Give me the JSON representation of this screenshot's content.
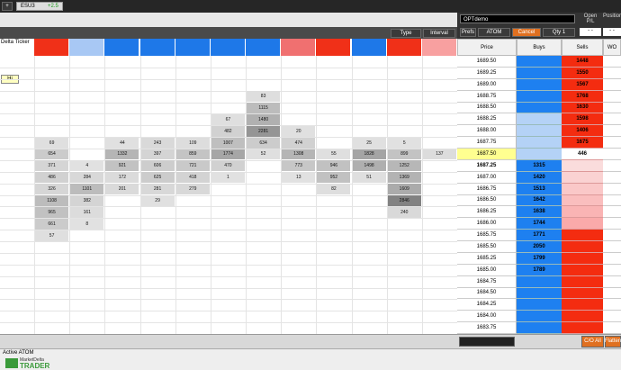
{
  "header": {
    "new_tab": "+",
    "symbol": "ESU3",
    "change": "+2.5",
    "account": "OPTdemo",
    "open_pl": "Open P/L",
    "position": "Position",
    "open_pl_value": "- -",
    "position_value": "- -"
  },
  "toolbar": {
    "type": "Type",
    "interval": "Interval",
    "prefs": "Prefs",
    "atom": "ATOM",
    "cancel": "Cancel",
    "qty": "Qty 1"
  },
  "delta_ticker": "Delta Ticker",
  "marker": "Hi",
  "ladder": {
    "columns": [
      "Price",
      "Buys",
      "Sells",
      "WO"
    ],
    "rows": [
      {
        "price": "1689.50",
        "sells": 1448
      },
      {
        "price": "1689.25",
        "sells": 1550
      },
      {
        "price": "1689.00",
        "sells": 1567
      },
      {
        "price": "1688.75",
        "sells": 1768
      },
      {
        "price": "1688.50",
        "sells": 1630
      },
      {
        "price": "1688.25",
        "sells": 1598
      },
      {
        "price": "1688.00",
        "sells": 1406
      },
      {
        "price": "1687.75",
        "sells": 1675
      },
      {
        "price": "1687.50",
        "sells": 446
      },
      {
        "price": "1687.25",
        "buys": 1315
      },
      {
        "price": "1687.00",
        "buys": 1420
      },
      {
        "price": "1686.75",
        "buys": 1513
      },
      {
        "price": "1686.50",
        "buys": 1642
      },
      {
        "price": "1686.25",
        "buys": 1638
      },
      {
        "price": "1686.00",
        "buys": 1744
      },
      {
        "price": "1685.75",
        "buys": 1771
      },
      {
        "price": "1685.50",
        "buys": 2050
      },
      {
        "price": "1685.25",
        "buys": 1799
      },
      {
        "price": "1685.00",
        "buys": 1789
      },
      {
        "price": "1684.75"
      },
      {
        "price": "1684.50"
      },
      {
        "price": "1684.25"
      },
      {
        "price": "1684.00"
      },
      {
        "price": "1683.75"
      }
    ]
  },
  "footprint": {
    "columns": [
      [
        null,
        null,
        null,
        null,
        null,
        null,
        null,
        69,
        654,
        371,
        486,
        326,
        1108,
        965,
        661,
        57
      ],
      [
        null,
        null,
        null,
        null,
        null,
        null,
        null,
        null,
        null,
        4,
        284,
        1101,
        382,
        161,
        8
      ],
      [
        null,
        null,
        null,
        null,
        null,
        null,
        null,
        44,
        1332,
        921,
        172,
        201
      ],
      [
        null,
        null,
        null,
        null,
        null,
        null,
        null,
        243,
        397,
        606,
        625,
        281,
        29
      ],
      [
        null,
        null,
        null,
        null,
        null,
        null,
        null,
        109,
        859,
        721,
        418,
        279
      ],
      [
        null,
        null,
        null,
        null,
        null,
        67,
        482,
        1007,
        1774,
        470,
        1
      ],
      [
        null,
        null,
        null,
        83,
        1115,
        1480,
        2281,
        634,
        52
      ],
      [
        null,
        null,
        null,
        null,
        null,
        null,
        20,
        474,
        1308,
        773,
        13
      ],
      [
        null,
        null,
        null,
        null,
        null,
        null,
        null,
        null,
        55,
        946,
        952,
        82
      ],
      [
        null,
        null,
        null,
        null,
        null,
        null,
        null,
        25,
        1828,
        1498,
        51
      ],
      [
        null,
        null,
        null,
        null,
        null,
        null,
        null,
        5,
        899,
        1252,
        1369,
        1609,
        2846,
        240
      ],
      [
        null,
        null,
        null,
        null,
        null,
        null,
        null,
        null,
        137
      ]
    ]
  },
  "footer": {
    "co_all": "C/O All",
    "flatten": "Flatten",
    "status": "Active ATOM",
    "logo_top": "MarketDelta",
    "logo_bottom": "TRADER"
  }
}
